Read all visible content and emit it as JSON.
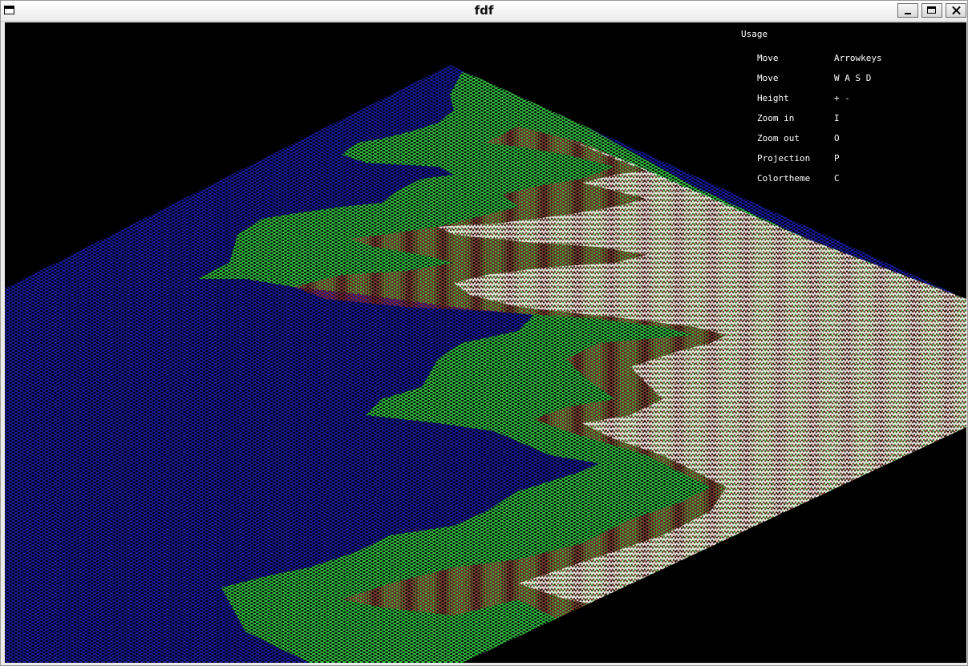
{
  "window": {
    "title": "fdf"
  },
  "usage": {
    "title": "Usage",
    "rows": [
      {
        "action": "Move",
        "key": "Arrowkeys"
      },
      {
        "action": "Move",
        "key": "W A S D"
      },
      {
        "action": "Height",
        "key": "+ -"
      },
      {
        "action": "Zoom in",
        "key": "I"
      },
      {
        "action": "Zoom out",
        "key": "O"
      },
      {
        "action": "Projection",
        "key": "P"
      },
      {
        "action": "Colortheme",
        "key": "C"
      }
    ]
  },
  "colors": {
    "background": "#000000",
    "water": "#1a1fb4",
    "land": "#38d838",
    "mountain": "#7a2424",
    "snow": "#ffffff"
  }
}
